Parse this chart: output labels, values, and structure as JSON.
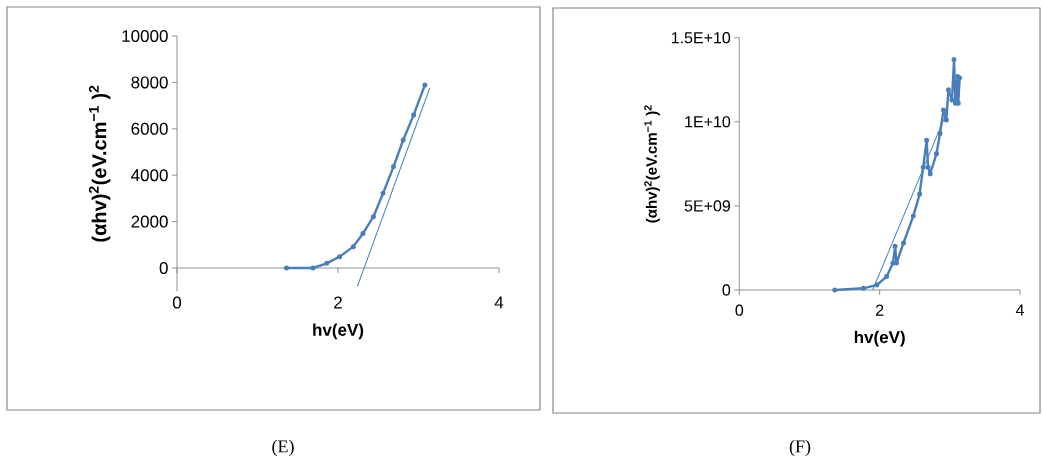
{
  "chart_data": [
    {
      "type": "line",
      "xlabel": "hv(eV)",
      "ylabel": "(αhv)$^{2}$(eV.cm$^{−1}$ )$^{2}$",
      "xlim": [
        0,
        4
      ],
      "ylim": [
        -1000,
        10000
      ],
      "xticks": [
        0,
        2,
        4
      ],
      "yticks": [
        0,
        2000,
        4000,
        6000,
        8000,
        10000
      ],
      "annotations": [
        "(E)"
      ],
      "series": [
        {
          "color": "#4a7ebb",
          "marker": "circle",
          "x": [
            1.36,
            1.69,
            1.86,
            2.02,
            2.19,
            2.31,
            2.44,
            2.56,
            2.69,
            2.81,
            2.94,
            3.08
          ],
          "values": [
            0,
            0,
            200,
            490,
            920,
            1490,
            2210,
            3220,
            4370,
            5520,
            6600,
            7890
          ]
        },
        {
          "color": "#4a7ebb",
          "x": [
            2.24,
            3.14
          ],
          "values": [
            -800,
            7760
          ]
        }
      ]
    },
    {
      "type": "line",
      "xlabel": "hv(eV)",
      "ylabel": "(αhv)$^{2}$(eV.cm$^{−1}$ )$^{2}$",
      "xlim": [
        0,
        4
      ],
      "ylim": [
        0,
        15000000000
      ],
      "xticks": [
        0,
        2,
        4
      ],
      "yticks": [
        0,
        {
          "value": 5000000000,
          "label": "5E+09"
        },
        {
          "value": 10000000000,
          "label": "1E+10"
        },
        {
          "value": 15000000000,
          "label": "1.5E+10"
        }
      ],
      "annotations": [
        "(F)"
      ],
      "series": [
        {
          "color": "#4a7ebb",
          "marker": "circle",
          "x": [
            1.36,
            1.77,
            1.96,
            2.1,
            2.19,
            2.22,
            2.24,
            2.34,
            2.48,
            2.57,
            2.62,
            2.67,
            2.69,
            2.72,
            2.81,
            2.86,
            2.91,
            2.95,
            2.98,
            3.03,
            3.06,
            3.08,
            3.11,
            3.12,
            3.14
          ],
          "values": [
            0,
            100000000,
            300000000,
            800000000,
            1600000000,
            2600000000,
            1600000000,
            2800000000,
            4400000000,
            5700000000,
            7300000000,
            8900000000,
            7300000000,
            6900000000,
            8100000000,
            9300000000,
            10700000000,
            10100000000,
            11900000000,
            11300000000,
            13700000000,
            11100000000,
            12700000000,
            11100000000,
            12600000000
          ]
        },
        {
          "color": "#4a7ebb",
          "x": [
            1.9,
            2.95
          ],
          "values": [
            0,
            10500000000
          ]
        }
      ]
    }
  ]
}
